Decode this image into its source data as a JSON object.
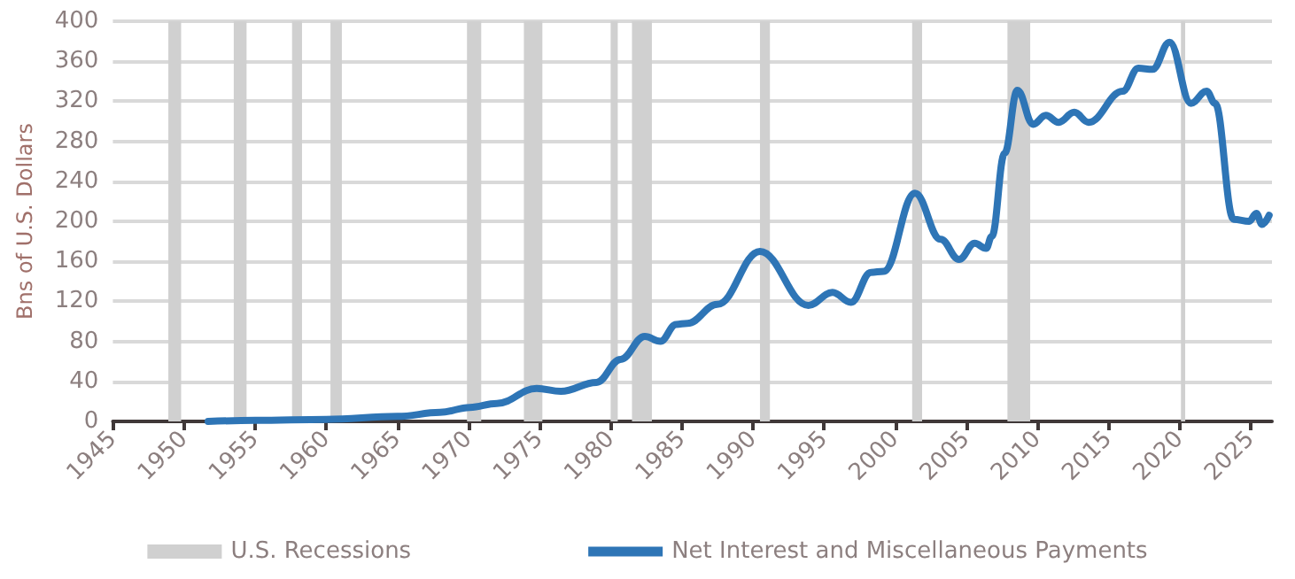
{
  "chart_data": {
    "type": "line",
    "ylabel": "Bns of U.S. Dollars",
    "xlim": [
      1945,
      2026.5
    ],
    "xticks": [
      1945,
      1950,
      1955,
      1960,
      1965,
      1970,
      1975,
      1980,
      1985,
      1990,
      1995,
      2000,
      2005,
      2010,
      2015,
      2020,
      2025
    ],
    "ylim": [
      0,
      400
    ],
    "yticks": [
      0,
      40,
      80,
      120,
      160,
      200,
      240,
      280,
      320,
      360,
      400
    ],
    "grid": "y",
    "legend": "bottom",
    "line_style": "solid",
    "marker": "none",
    "bands": [
      {
        "axis": "x",
        "from": 1948.9,
        "to": 1949.8,
        "label": "U.S. Recessions",
        "color": "#d0d0d0"
      },
      {
        "axis": "x",
        "from": 1953.5,
        "to": 1954.4,
        "color": "#d0d0d0"
      },
      {
        "axis": "x",
        "from": 1957.6,
        "to": 1958.3,
        "color": "#d0d0d0"
      },
      {
        "axis": "x",
        "from": 1960.3,
        "to": 1961.1,
        "color": "#d0d0d0"
      },
      {
        "axis": "x",
        "from": 1969.9,
        "to": 1970.9,
        "color": "#d0d0d0"
      },
      {
        "axis": "x",
        "from": 1973.9,
        "to": 1975.2,
        "color": "#d0d0d0"
      },
      {
        "axis": "x",
        "from": 1980.0,
        "to": 1980.5,
        "color": "#d0d0d0"
      },
      {
        "axis": "x",
        "from": 1981.5,
        "to": 1982.9,
        "color": "#d0d0d0"
      },
      {
        "axis": "x",
        "from": 1990.5,
        "to": 1991.2,
        "color": "#d0d0d0"
      },
      {
        "axis": "x",
        "from": 2001.2,
        "to": 2001.9,
        "color": "#d0d0d0"
      },
      {
        "axis": "x",
        "from": 2007.9,
        "to": 2009.5,
        "color": "#d0d0d0"
      },
      {
        "axis": "x",
        "from": 2020.1,
        "to": 2020.4,
        "color": "#d0d0d0"
      }
    ],
    "series": [
      {
        "name": "Net Interest and Miscellaneous Payments",
        "color": "#2e75b6",
        "x": [
          1951.7,
          1955,
          1960,
          1965,
          1968,
          1970.1,
          1972,
          1974.8,
          1976.5,
          1979,
          1980.7,
          1982.4,
          1983.5,
          1984.6,
          1985.4,
          1987.5,
          1990.5,
          1993.9,
          1995.6,
          1996.9,
          1998.3,
          1999.2,
          2001.4,
          2003.2,
          2004.5,
          2005.6,
          2006.4,
          2006.8,
          2007.7,
          2008.6,
          2009.7,
          2010.6,
          2011.5,
          2012.6,
          2013.6,
          2016,
          2017.1,
          2018.1,
          2019.3,
          2020.8,
          2021.9,
          2022.5,
          2023.8,
          2024.9,
          2025.4,
          2025.8,
          2026.3
        ],
        "values": [
          0,
          1,
          2,
          5,
          9,
          14,
          18,
          33,
          30,
          39,
          62,
          85,
          80,
          97,
          98,
          117,
          170,
          116,
          129,
          119,
          149,
          150,
          228,
          182,
          162,
          178,
          173,
          185,
          268,
          331,
          297,
          306,
          299,
          309,
          299,
          330,
          353,
          352,
          379,
          318,
          330,
          318,
          202,
          200,
          208,
          197,
          206
        ]
      }
    ]
  }
}
